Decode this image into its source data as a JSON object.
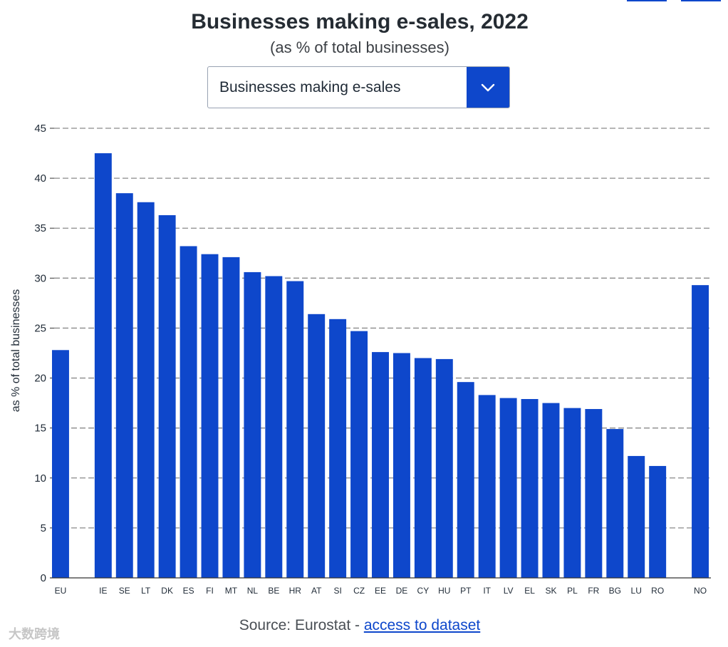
{
  "title": "Businesses making e-sales, 2022",
  "subtitle": "(as % of total businesses)",
  "dropdown": {
    "selected": "Businesses making e-sales"
  },
  "source": {
    "prefix": "Source: Eurostat - ",
    "link": "access to dataset"
  },
  "watermark": "大数跨境",
  "colors": {
    "bar": "#0e47cb",
    "grid": "#8a8a8a",
    "axis": "#333333"
  },
  "chart_data": {
    "type": "bar",
    "title": "Businesses making e-sales, 2022",
    "xlabel": "",
    "ylabel": "as % of total businesses",
    "ylim": [
      0,
      45
    ],
    "yticks": [
      0,
      5,
      10,
      15,
      20,
      25,
      30,
      35,
      40,
      45
    ],
    "grid": true,
    "categories": [
      "EU",
      "",
      "IE",
      "SE",
      "LT",
      "DK",
      "ES",
      "FI",
      "MT",
      "NL",
      "BE",
      "HR",
      "AT",
      "SI",
      "CZ",
      "EE",
      "DE",
      "CY",
      "HU",
      "PT",
      "IT",
      "LV",
      "EL",
      "SK",
      "PL",
      "FR",
      "BG",
      "LU",
      "RO",
      "",
      "NO"
    ],
    "values": [
      22.8,
      null,
      42.5,
      38.5,
      37.6,
      36.3,
      33.2,
      32.4,
      32.1,
      30.6,
      30.2,
      29.7,
      26.4,
      25.9,
      24.7,
      22.6,
      22.5,
      22.0,
      21.9,
      19.6,
      18.3,
      18.0,
      17.9,
      17.5,
      17.0,
      16.9,
      14.9,
      12.2,
      11.2,
      null,
      29.3
    ]
  }
}
